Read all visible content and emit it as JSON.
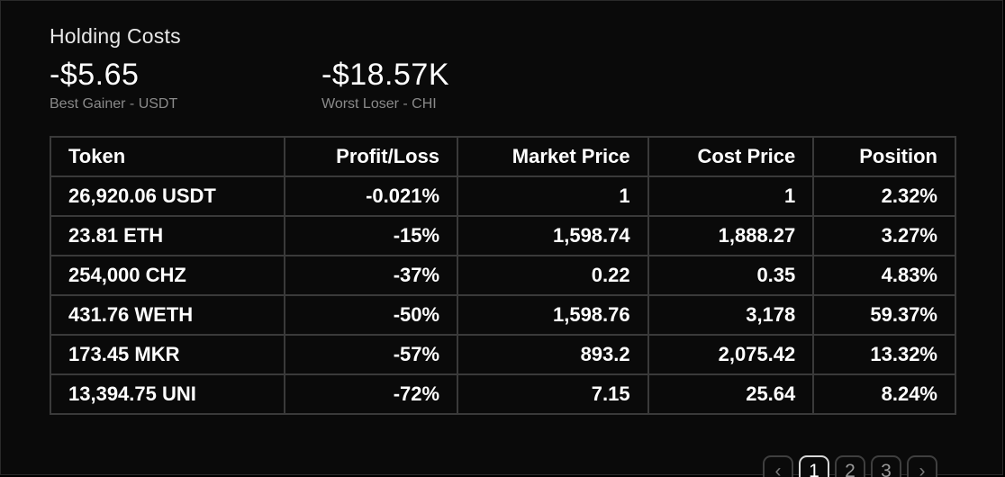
{
  "title": "Holding Costs",
  "best": {
    "value": "-$5.65",
    "caption": "Best Gainer - USDT"
  },
  "worst": {
    "value": "-$18.57K",
    "caption": "Worst Loser - CHI"
  },
  "table": {
    "headers": [
      "Token",
      "Profit/Loss",
      "Market Price",
      "Cost Price",
      "Position"
    ],
    "rows": [
      [
        "26,920.06 USDT",
        "-0.021%",
        "1",
        "1",
        "2.32%"
      ],
      [
        "23.81 ETH",
        "-15%",
        "1,598.74",
        "1,888.27",
        "3.27%"
      ],
      [
        "254,000 CHZ",
        "-37%",
        "0.22",
        "0.35",
        "4.83%"
      ],
      [
        "431.76 WETH",
        "-50%",
        "1,598.76",
        "3,178",
        "59.37%"
      ],
      [
        "173.45 MKR",
        "-57%",
        "893.2",
        "2,075.42",
        "13.32%"
      ],
      [
        "13,394.75 UNI",
        "-72%",
        "7.15",
        "25.64",
        "8.24%"
      ]
    ]
  },
  "pagination": {
    "prev_icon": "chevron-left-icon",
    "prev": "‹",
    "pages": [
      "1",
      "2",
      "3"
    ],
    "current": "1",
    "next_icon": "chevron-right-icon",
    "next": "›"
  }
}
